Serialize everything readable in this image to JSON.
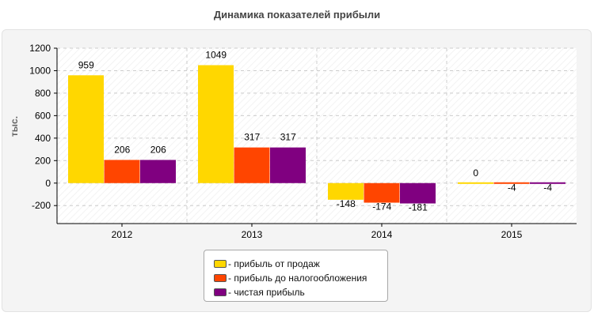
{
  "chart_data": {
    "type": "bar",
    "title": "Динамика показателей прибыли",
    "ylabel": "тыс.",
    "xlabel": "",
    "ylim": [
      -360,
      1200
    ],
    "yticks": [
      -200,
      0,
      200,
      400,
      600,
      800,
      1000,
      1200
    ],
    "categories": [
      "2012",
      "2013",
      "2014",
      "2015"
    ],
    "series": [
      {
        "name": "- прибыль от продаж",
        "color": "#FFD700",
        "values": [
          959,
          1049,
          -148,
          0
        ]
      },
      {
        "name": "- прибыль до налогообложения",
        "color": "#FF4500",
        "values": [
          206,
          317,
          -174,
          -4
        ]
      },
      {
        "name": "- чистая прибыль",
        "color": "#800080",
        "values": [
          206,
          317,
          -181,
          -4
        ]
      }
    ],
    "grid": true,
    "legend_position": "bottom"
  }
}
